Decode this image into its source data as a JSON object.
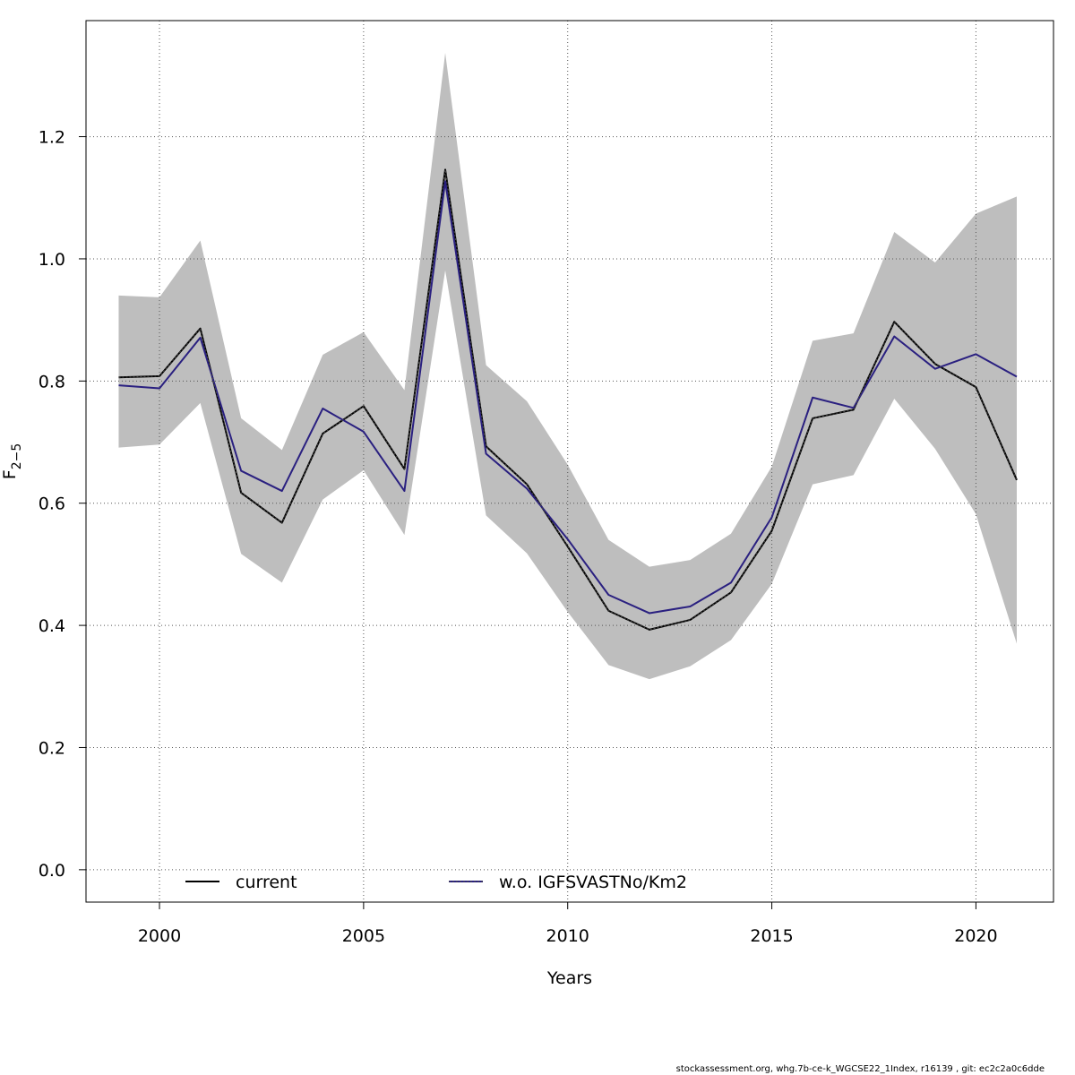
{
  "chart_data": {
    "type": "line",
    "xlabel": "Years",
    "ylabel": "F",
    "ylabel_sub": "2−5",
    "xlim": [
      1998.2,
      2021.9
    ],
    "ylim": [
      -0.053,
      1.39
    ],
    "x_ticks": [
      2000,
      2005,
      2010,
      2015,
      2020
    ],
    "y_ticks": [
      0.0,
      0.2,
      0.4,
      0.6,
      0.8,
      1.0,
      1.2
    ],
    "y_tick_labels": [
      "0.0",
      "0.2",
      "0.4",
      "0.6",
      "0.8",
      "1.0",
      "1.2"
    ],
    "grid": true,
    "legend_position": "bottom",
    "colors": {
      "band": "#bebebe",
      "current": "#000000",
      "dashed_overlay": "#444444",
      "alt": "#2a2080",
      "grid": "#555555"
    },
    "x": [
      1999,
      2000,
      2001,
      2002,
      2003,
      2004,
      2005,
      2006,
      2007,
      2008,
      2009,
      2010,
      2011,
      2012,
      2013,
      2014,
      2015,
      2016,
      2017,
      2018,
      2019,
      2020,
      2021
    ],
    "band_upper": [
      0.94,
      0.937,
      1.03,
      0.739,
      0.687,
      0.843,
      0.88,
      0.785,
      1.337,
      0.826,
      0.767,
      0.663,
      0.54,
      0.496,
      0.507,
      0.55,
      0.66,
      0.866,
      0.878,
      1.044,
      0.994,
      1.074,
      1.102
    ],
    "band_lower": [
      0.691,
      0.696,
      0.764,
      0.517,
      0.47,
      0.606,
      0.654,
      0.548,
      0.981,
      0.58,
      0.518,
      0.422,
      0.335,
      0.312,
      0.333,
      0.376,
      0.468,
      0.631,
      0.646,
      0.771,
      0.689,
      0.582,
      0.37
    ],
    "series": [
      {
        "name": "current",
        "values": [
          0.806,
          0.808,
          0.886,
          0.617,
          0.568,
          0.714,
          0.759,
          0.656,
          1.146,
          0.693,
          0.631,
          0.529,
          0.424,
          0.393,
          0.409,
          0.454,
          0.555,
          0.739,
          0.753,
          0.897,
          0.828,
          0.79,
          0.638
        ]
      },
      {
        "name": "w.o. IGFSVASTNo/Km2",
        "values": [
          0.793,
          0.788,
          0.871,
          0.653,
          0.62,
          0.755,
          0.717,
          0.62,
          1.127,
          0.681,
          0.624,
          0.541,
          0.45,
          0.42,
          0.431,
          0.47,
          0.577,
          0.773,
          0.756,
          0.873,
          0.82,
          0.844,
          0.807
        ]
      }
    ]
  },
  "footer": "stockassessment.org, whg.7b-ce-k_WGCSE22_1Index, r16139 , git: ec2c2a0c6dde"
}
